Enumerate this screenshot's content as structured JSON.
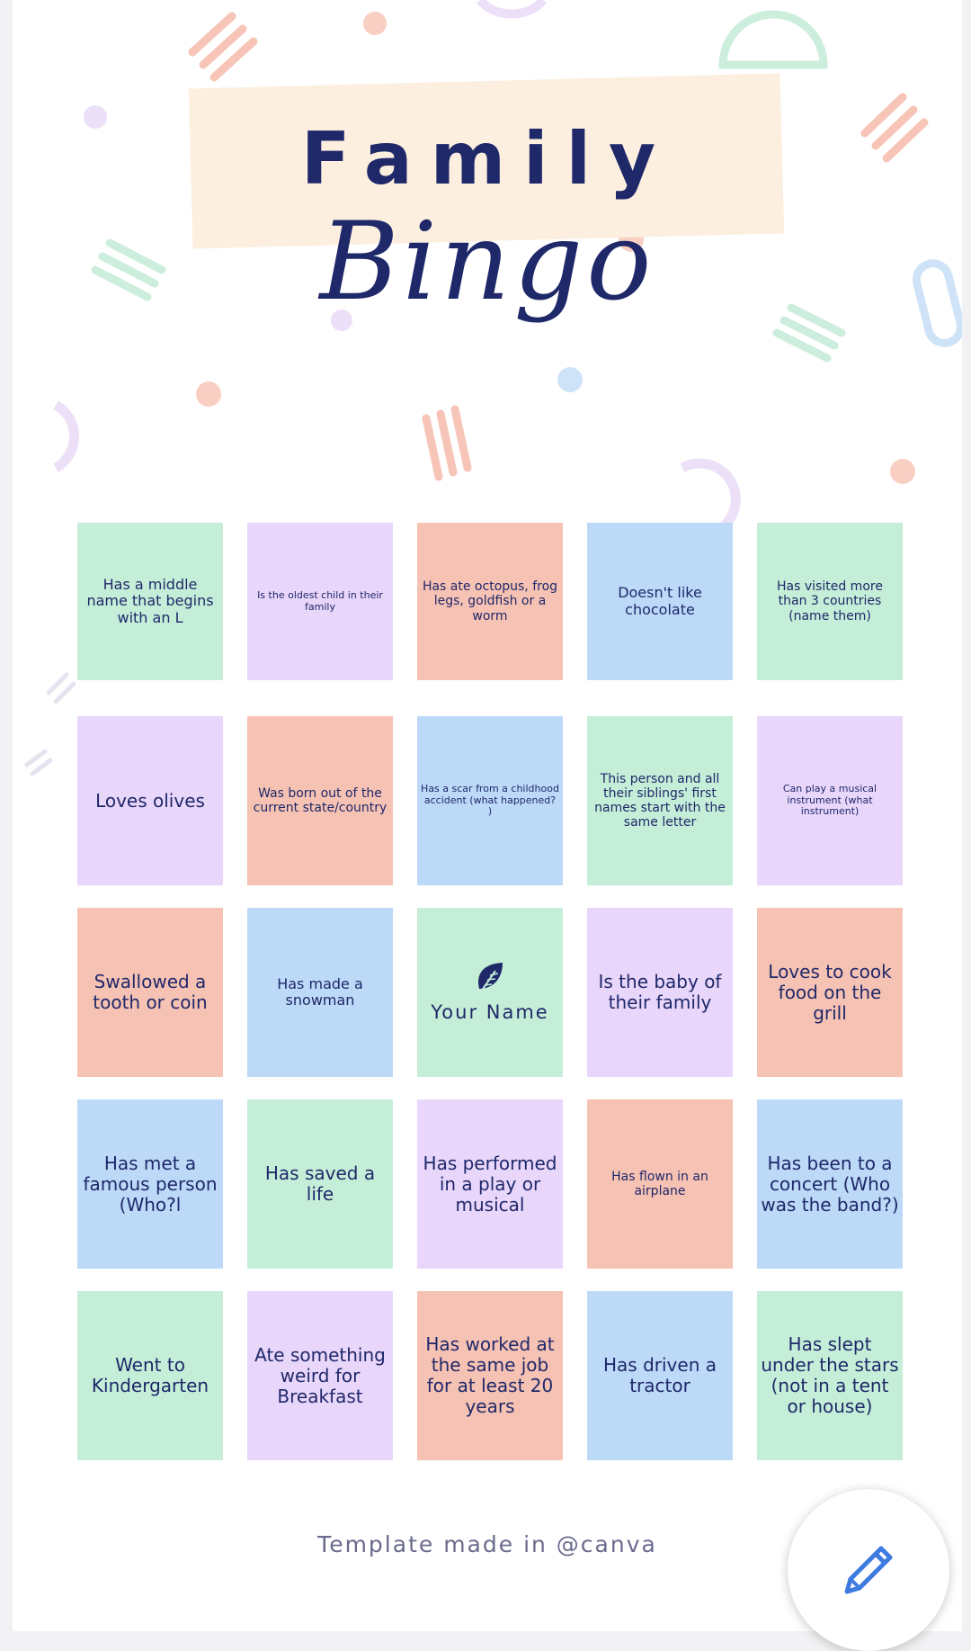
{
  "header": {
    "title_line1": "Family",
    "title_line2": "Bingo"
  },
  "board": {
    "rows": [
      [
        {
          "text": "Has a middle name that begins with an L",
          "color": "green"
        },
        {
          "text": "Is the oldest child in their family",
          "color": "lilac"
        },
        {
          "text": "Has ate octopus, frog legs, goldfish or a worm",
          "color": "peach"
        },
        {
          "text": "Doesn't like chocolate",
          "color": "blue"
        },
        {
          "text": "Has visited more than 3 countries (name them)",
          "color": "green"
        }
      ],
      [
        {
          "text": "Loves olives",
          "color": "lilac"
        },
        {
          "text": "Was born out of the current state/country",
          "color": "peach"
        },
        {
          "text": "Has a scar from a childhood accident (what happened? )",
          "color": "blue"
        },
        {
          "text": "This person and all their siblings' first names start with the same letter",
          "color": "green"
        },
        {
          "text": "Can play a musical instrument (what instrument)",
          "color": "lilac"
        }
      ],
      [
        {
          "text": "Swallowed a tooth or coin",
          "color": "peach"
        },
        {
          "text": "Has made a snowman",
          "color": "blue"
        },
        {
          "text": "Your Name",
          "color": "green"
        },
        {
          "text": "Is the baby of their family",
          "color": "lilac"
        },
        {
          "text": "Loves to cook food on the grill",
          "color": "peach"
        }
      ],
      [
        {
          "text": "Has met a famous person (Who?l",
          "color": "blue"
        },
        {
          "text": "Has saved a life",
          "color": "green"
        },
        {
          "text": "Has performed in a play or musical",
          "color": "lilac"
        },
        {
          "text": "Has flown in an airplane",
          "color": "peach"
        },
        {
          "text": "Has been to a concert (Who was the band?)",
          "color": "blue"
        }
      ],
      [
        {
          "text": "Went to Kindergarten",
          "color": "green"
        },
        {
          "text": "Ate something weird for Breakfast",
          "color": "lilac"
        },
        {
          "text": "Has worked at the same job for at least 20 years",
          "color": "peach"
        },
        {
          "text": "Has driven a tractor",
          "color": "blue"
        },
        {
          "text": "Has slept under the stars (not in a tent or house)",
          "color": "green"
        }
      ]
    ],
    "free_space_icon": "leaf-icon"
  },
  "footer": {
    "credit": "Template made in @canva"
  },
  "fab": {
    "icon": "pencil-icon"
  },
  "palette": {
    "green": "#c4eed8",
    "lilac": "#e8d6fb",
    "peach": "#f6c2b3",
    "blue": "#bcd9f8",
    "ink": "#1f2869"
  }
}
